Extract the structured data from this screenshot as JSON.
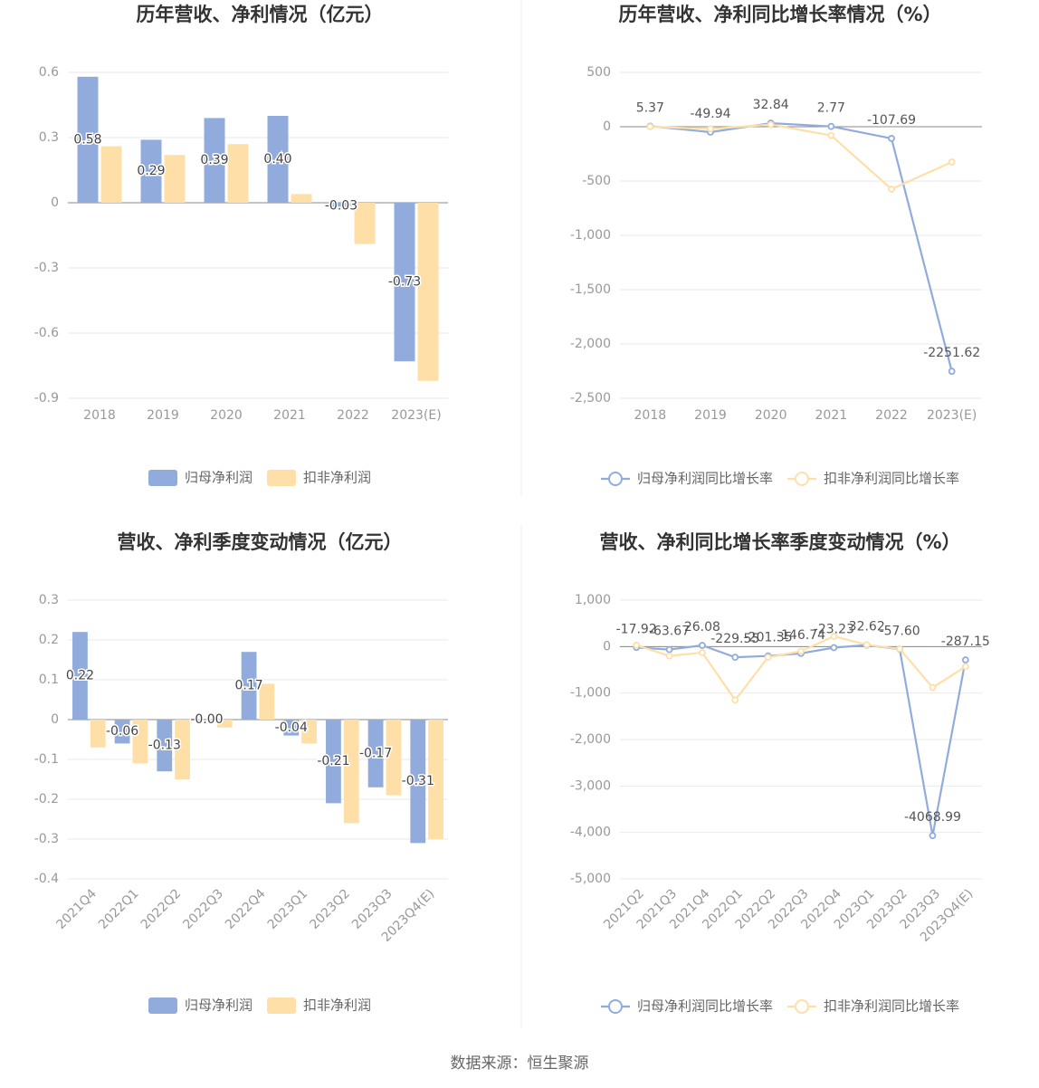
{
  "chart_data": [
    {
      "type": "bar",
      "title": "历年营收、净利情况（亿元）",
      "categories": [
        "2018",
        "2019",
        "2020",
        "2021",
        "2022",
        "2023(E)"
      ],
      "series": [
        {
          "name": "归母净利润",
          "color": "#91acdc",
          "values": [
            0.58,
            0.29,
            0.39,
            0.4,
            -0.03,
            -0.73
          ],
          "value_labels": [
            "0.58",
            "0.29",
            "0.39",
            "0.40",
            "-0.03",
            "-0.73"
          ],
          "labels": true
        },
        {
          "name": "扣非净利润",
          "color": "#ffdfa8",
          "values": [
            0.26,
            0.22,
            0.27,
            0.04,
            -0.19,
            -0.82
          ]
        }
      ],
      "ylim": [
        -0.9,
        0.6
      ],
      "yticks": [
        -0.9,
        -0.6,
        -0.3,
        0,
        0.3,
        0.6
      ],
      "grid": true,
      "legend": "bottom",
      "rotated_labels": false
    },
    {
      "type": "line",
      "title": "历年营收、净利同比增长率情况（%）",
      "categories": [
        "2018",
        "2019",
        "2020",
        "2021",
        "2022",
        "2023(E)"
      ],
      "series": [
        {
          "name": "归母净利润同比增长率",
          "color": "#91acdc",
          "values": [
            5.37,
            -49.94,
            32.84,
            2.77,
            -107.69,
            -2251.62
          ],
          "labels": true
        },
        {
          "name": "扣非净利润同比增长率",
          "color": "#ffdfa8",
          "values": [
            0,
            -20,
            20,
            -80,
            -575,
            -325
          ]
        }
      ],
      "ylim": [
        -2500,
        500
      ],
      "yticks": [
        {
          "value": -2500,
          "label": "-2,500"
        },
        {
          "value": -2000,
          "label": "-2,000"
        },
        {
          "value": -1500,
          "label": "-1,500"
        },
        {
          "value": -1000,
          "label": "-1,000"
        },
        -500,
        0,
        500
      ],
      "grid": true,
      "legend": "bottom",
      "rotated_labels": false
    },
    {
      "type": "bar",
      "title": "营收、净利季度变动情况（亿元）",
      "categories": [
        "2021Q4",
        "2022Q1",
        "2022Q2",
        "2022Q3",
        "2022Q4",
        "2023Q1",
        "2023Q2",
        "2023Q3",
        "2023Q4(E)"
      ],
      "series": [
        {
          "name": "归母净利润",
          "color": "#91acdc",
          "values": [
            0.22,
            -0.06,
            -0.13,
            0,
            0.17,
            -0.04,
            -0.21,
            -0.17,
            -0.31
          ],
          "value_labels": [
            "0.22",
            "-0.06",
            "-0.13",
            "-0.00",
            "0.17",
            "-0.04",
            "-0.21",
            "-0.17",
            "-0.31"
          ],
          "labels": true
        },
        {
          "name": "扣非净利润",
          "color": "#ffdfa8",
          "values": [
            -0.07,
            -0.11,
            -0.15,
            -0.02,
            0.09,
            -0.06,
            -0.26,
            -0.19,
            -0.3
          ]
        }
      ],
      "ylim": [
        -0.4,
        0.3
      ],
      "yticks": [
        -0.4,
        -0.3,
        -0.2,
        -0.1,
        0,
        0.1,
        0.2,
        0.3
      ],
      "grid": true,
      "legend": "bottom",
      "rotated_labels": true
    },
    {
      "type": "line",
      "title": "营收、净利同比增长率季度变动情况（%）",
      "categories": [
        "2021Q2",
        "2021Q3",
        "2021Q4",
        "2022Q1",
        "2022Q2",
        "2022Q3",
        "2022Q4",
        "2023Q1",
        "2023Q2",
        "2023Q3",
        "2023Q4(E)"
      ],
      "series": [
        {
          "name": "归母净利润同比增长率",
          "color": "#91acdc",
          "values": [
            -17.92,
            -63.67,
            26.08,
            -229.55,
            -201.35,
            -146.74,
            -23.23,
            32.62,
            -57.6,
            -4068.99,
            -287.15
          ],
          "value_labels": [
            "-17.92",
            "-63.67",
            "26.08",
            "-229.55",
            "-201.35",
            "-146.74",
            "-23.23",
            "32.62",
            "-57.60",
            "-4068.99",
            "-287.15"
          ],
          "labels": true
        },
        {
          "name": "扣非净利润同比增长率",
          "color": "#ffdfa8",
          "values": [
            30,
            -200,
            -130,
            -1150,
            -230,
            -100,
            220,
            40,
            -50,
            -880,
            -430
          ]
        }
      ],
      "ylim": [
        -5000,
        1000
      ],
      "yticks": [
        {
          "value": -5000,
          "label": "-5,000"
        },
        {
          "value": -4000,
          "label": "-4,000"
        },
        {
          "value": -3000,
          "label": "-3,000"
        },
        {
          "value": -2000,
          "label": "-2,000"
        },
        {
          "value": -1000,
          "label": "-1,000"
        },
        0,
        {
          "value": 1000,
          "label": "1,000"
        }
      ],
      "grid": true,
      "legend": "bottom",
      "rotated_labels": true
    }
  ],
  "source": "数据来源：恒生聚源"
}
